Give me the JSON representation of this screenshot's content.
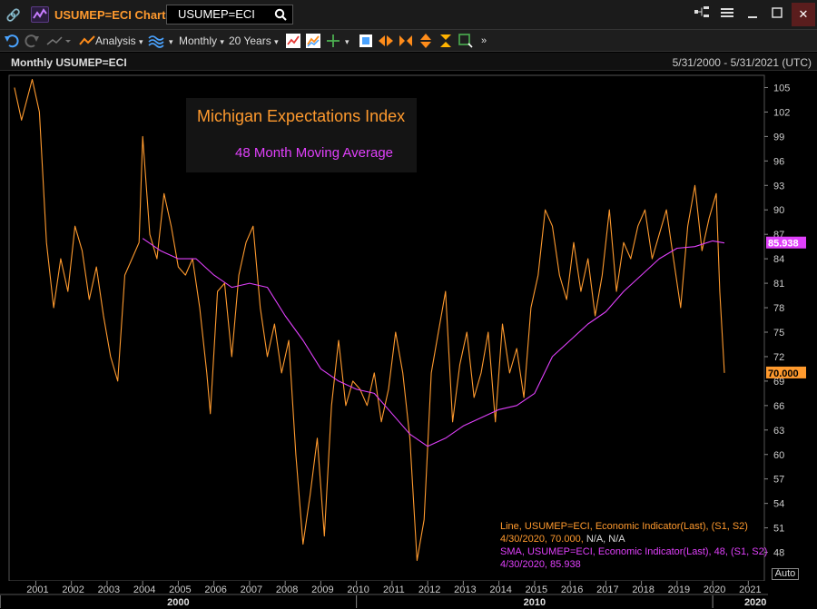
{
  "window": {
    "title": "USUMEP=ECI Chart",
    "search_value": "USUMEP=ECI"
  },
  "toolbar": {
    "analysis_label": "Analysis",
    "period_label": "Monthly",
    "range_label": "20 Years"
  },
  "chart_header": {
    "title": "Monthly USUMEP=ECI",
    "date_range": "5/31/2000 - 5/31/2021 (UTC)"
  },
  "legend": {
    "line1": "Michigan Expectations Index",
    "line2": "48 Month Moving Average"
  },
  "info": {
    "line_desc": "Line, USUMEP=ECI, Economic Indicator(Last), (S1, S2)",
    "line_date": "4/30/2020, 70.000, ",
    "line_na": "N/A, N/A",
    "sma_desc": "SMA, USUMEP=ECI, Economic Indicator(Last),  48, (S1, S2)",
    "sma_date": "4/30/2020, 85.938"
  },
  "auto_label": "Auto",
  "colors": {
    "line": "#ff9a2e",
    "sma": "#e040fb",
    "background": "#000000",
    "accent": "#ff9a2e"
  },
  "chart_data": {
    "type": "line",
    "x_labels": [
      "2001",
      "2002",
      "2003",
      "2004",
      "2005",
      "2006",
      "2007",
      "2008",
      "2009",
      "2010",
      "2011",
      "2012",
      "2013",
      "2014",
      "2015",
      "2016",
      "2017",
      "2018",
      "2019",
      "2020",
      "2021"
    ],
    "decade_labels": [
      "2000",
      "2010",
      "2020"
    ],
    "y_ticks": [
      48,
      51,
      54,
      57,
      60,
      63,
      66,
      69,
      72,
      75,
      78,
      81,
      84,
      87,
      90,
      93,
      96,
      99,
      102,
      105
    ],
    "ylim": [
      44.5,
      106.5
    ],
    "last_values": {
      "line": "70.000",
      "sma": "85.938"
    },
    "series": [
      {
        "name": "Line",
        "values": [
          [
            2000.4,
            105
          ],
          [
            2000.6,
            101
          ],
          [
            2000.9,
            106
          ],
          [
            2001.1,
            102
          ],
          [
            2001.3,
            86
          ],
          [
            2001.5,
            78
          ],
          [
            2001.7,
            84
          ],
          [
            2001.9,
            80
          ],
          [
            2002.1,
            88
          ],
          [
            2002.3,
            85
          ],
          [
            2002.5,
            79
          ],
          [
            2002.7,
            83
          ],
          [
            2002.9,
            77
          ],
          [
            2003.1,
            72
          ],
          [
            2003.3,
            69
          ],
          [
            2003.5,
            82
          ],
          [
            2003.7,
            84
          ],
          [
            2003.9,
            86
          ],
          [
            2004.0,
            99
          ],
          [
            2004.2,
            87
          ],
          [
            2004.4,
            84
          ],
          [
            2004.6,
            92
          ],
          [
            2004.8,
            88
          ],
          [
            2005.0,
            83
          ],
          [
            2005.2,
            82
          ],
          [
            2005.4,
            84
          ],
          [
            2005.6,
            78
          ],
          [
            2005.8,
            70
          ],
          [
            2005.9,
            65
          ],
          [
            2006.1,
            80
          ],
          [
            2006.3,
            81
          ],
          [
            2006.5,
            72
          ],
          [
            2006.7,
            82
          ],
          [
            2006.9,
            86
          ],
          [
            2007.1,
            88
          ],
          [
            2007.3,
            78
          ],
          [
            2007.5,
            72
          ],
          [
            2007.7,
            76
          ],
          [
            2007.9,
            70
          ],
          [
            2008.1,
            74
          ],
          [
            2008.3,
            60
          ],
          [
            2008.5,
            49
          ],
          [
            2008.7,
            55
          ],
          [
            2008.9,
            62
          ],
          [
            2009.1,
            50
          ],
          [
            2009.3,
            66
          ],
          [
            2009.5,
            74
          ],
          [
            2009.7,
            66
          ],
          [
            2009.9,
            69
          ],
          [
            2010.1,
            68
          ],
          [
            2010.3,
            66
          ],
          [
            2010.5,
            70
          ],
          [
            2010.7,
            64
          ],
          [
            2010.9,
            68
          ],
          [
            2011.1,
            75
          ],
          [
            2011.3,
            70
          ],
          [
            2011.5,
            62
          ],
          [
            2011.7,
            47
          ],
          [
            2011.9,
            52
          ],
          [
            2012.1,
            70
          ],
          [
            2012.3,
            75
          ],
          [
            2012.5,
            80
          ],
          [
            2012.7,
            64
          ],
          [
            2012.9,
            71
          ],
          [
            2013.1,
            75
          ],
          [
            2013.3,
            67
          ],
          [
            2013.5,
            70
          ],
          [
            2013.7,
            75
          ],
          [
            2013.9,
            64
          ],
          [
            2014.1,
            76
          ],
          [
            2014.3,
            70
          ],
          [
            2014.5,
            73
          ],
          [
            2014.7,
            67
          ],
          [
            2014.9,
            78
          ],
          [
            2015.1,
            82
          ],
          [
            2015.3,
            90
          ],
          [
            2015.5,
            88
          ],
          [
            2015.7,
            82
          ],
          [
            2015.9,
            79
          ],
          [
            2016.1,
            86
          ],
          [
            2016.3,
            80
          ],
          [
            2016.5,
            84
          ],
          [
            2016.7,
            77
          ],
          [
            2016.9,
            82
          ],
          [
            2017.1,
            90
          ],
          [
            2017.3,
            80
          ],
          [
            2017.5,
            86
          ],
          [
            2017.7,
            84
          ],
          [
            2017.9,
            88
          ],
          [
            2018.1,
            90
          ],
          [
            2018.3,
            84
          ],
          [
            2018.5,
            87
          ],
          [
            2018.7,
            90
          ],
          [
            2018.9,
            84
          ],
          [
            2019.1,
            78
          ],
          [
            2019.3,
            88
          ],
          [
            2019.5,
            93
          ],
          [
            2019.7,
            85
          ],
          [
            2019.9,
            89
          ],
          [
            2020.1,
            92
          ],
          [
            2020.2,
            80
          ],
          [
            2020.33,
            70
          ]
        ]
      },
      {
        "name": "SMA",
        "values": [
          [
            2004.0,
            86.5
          ],
          [
            2004.5,
            85.0
          ],
          [
            2005.0,
            84.0
          ],
          [
            2005.5,
            84.0
          ],
          [
            2006.0,
            82.0
          ],
          [
            2006.5,
            80.5
          ],
          [
            2007.0,
            81.0
          ],
          [
            2007.5,
            80.5
          ],
          [
            2008.0,
            77.0
          ],
          [
            2008.5,
            74.0
          ],
          [
            2009.0,
            70.5
          ],
          [
            2009.5,
            69.0
          ],
          [
            2010.0,
            68.0
          ],
          [
            2010.5,
            67.5
          ],
          [
            2011.0,
            65.0
          ],
          [
            2011.5,
            62.5
          ],
          [
            2012.0,
            61.0
          ],
          [
            2012.5,
            62.0
          ],
          [
            2013.0,
            63.5
          ],
          [
            2013.5,
            64.5
          ],
          [
            2014.0,
            65.5
          ],
          [
            2014.5,
            66.0
          ],
          [
            2015.0,
            67.5
          ],
          [
            2015.5,
            72.0
          ],
          [
            2016.0,
            74.0
          ],
          [
            2016.5,
            76.0
          ],
          [
            2017.0,
            77.5
          ],
          [
            2017.5,
            80.0
          ],
          [
            2018.0,
            82.0
          ],
          [
            2018.5,
            84.0
          ],
          [
            2019.0,
            85.3
          ],
          [
            2019.5,
            85.5
          ],
          [
            2020.0,
            86.2
          ],
          [
            2020.33,
            85.938
          ]
        ]
      }
    ]
  }
}
